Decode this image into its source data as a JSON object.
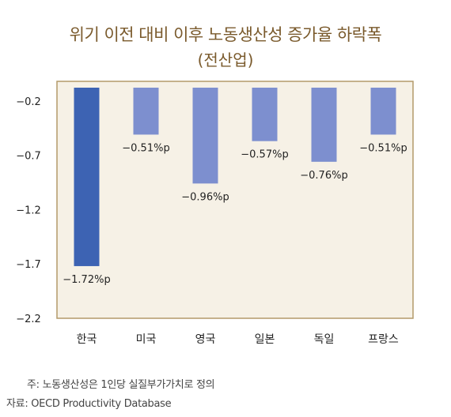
{
  "title": "위기 이전 대비 이후 노동생산성 증가율 하락폭",
  "subtitle": "(전산업)",
  "notes": {
    "footnote": "주: 노동생산성은 1인당 실질부가가치로 정의",
    "source": "자료: OECD Productivity Database"
  },
  "colors": {
    "plot_background": "#f6f1e6",
    "frame": "#b49a6a",
    "highlight_bar": "#3d63b3",
    "bar": "#7d8fcf",
    "title": "#7a5a2c"
  },
  "chart_data": {
    "type": "bar",
    "title": "위기 이전 대비 이후 노동생산성 증가율 하락폭",
    "subtitle": "(전산업)",
    "categories": [
      "한국",
      "미국",
      "영국",
      "일본",
      "독일",
      "프랑스"
    ],
    "values": [
      -1.72,
      -0.51,
      -0.96,
      -0.57,
      -0.76,
      -0.51
    ],
    "data_labels": [
      "-1.72%p",
      "-0.51%p",
      "-0.96%p",
      "-0.57%p",
      "-0.76%p",
      "-0.51%p"
    ],
    "highlight_index": 0,
    "ylim": [
      -2.2,
      0
    ],
    "yticks": [
      -0.2,
      -0.7,
      -1.2,
      -1.7,
      -2.2
    ],
    "ytick_labels": [
      "-0.2",
      "-0.7",
      "-1.2",
      "-1.7",
      "-2.2"
    ],
    "xlabel": "",
    "ylabel": "",
    "grid": false,
    "legend": "none"
  }
}
